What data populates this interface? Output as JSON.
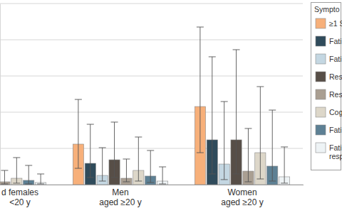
{
  "chart_data": {
    "type": "bar",
    "categories": [
      "d females\n<20 y",
      "Men\naged ≥20 y",
      "Women\naged ≥20 y"
    ],
    "legend_title": "Sympto",
    "series": [
      {
        "name": "≥1 S",
        "color": "#f7b07a",
        "values": [
          0.5,
          5.59,
          10.78
        ],
        "lower": [
          0.1,
          2.25,
          4.41
        ],
        "upper": [
          1.8,
          11.76,
          21.76
        ]
      },
      {
        "name": "Fati",
        "color": "#2f4b5b",
        "values": [
          0.3,
          2.94,
          6.18
        ],
        "lower": [
          0.05,
          0.98,
          1.47
        ],
        "upper": [
          1.2,
          8.33,
          17.65
        ]
      },
      {
        "name": "Fati",
        "color": "#c4d7e2",
        "values": [
          0.2,
          1.27,
          2.84
        ],
        "lower": [
          0.05,
          0.49,
          0.69
        ],
        "upper": [
          1.0,
          5.1,
          11.47
        ]
      },
      {
        "name": "Res",
        "color": "#574e47",
        "values": [
          0.3,
          3.43,
          6.18
        ],
        "lower": [
          0.05,
          0.98,
          1.47
        ],
        "upper": [
          1.2,
          8.63,
          18.63
        ]
      },
      {
        "name": "Res",
        "color": "#aa9f92",
        "values": [
          0.39,
          0.88,
          1.86
        ],
        "lower": [
          0.1,
          0.39,
          0.39
        ],
        "upper": [
          1.96,
          3.53,
          7.75
        ]
      },
      {
        "name": "Cog",
        "color": "#ddd7c9",
        "values": [
          0.88,
          1.96,
          4.41
        ],
        "lower": [
          0.2,
          0.49,
          0.78
        ],
        "upper": [
          3.73,
          6.57,
          13.53
        ]
      },
      {
        "name": "Fati",
        "color": "#5d8094",
        "values": [
          0.59,
          1.18,
          2.55
        ],
        "lower": [
          0.1,
          0.29,
          0.49
        ],
        "upper": [
          2.65,
          4.71,
          10.29
        ]
      },
      {
        "name": "Fati\nresp",
        "color": "#eef3f5",
        "values": [
          0.29,
          0.49,
          1.08
        ],
        "lower": [
          0.1,
          0.1,
          0.2
        ],
        "upper": [
          1.47,
          2.45,
          5.2
        ]
      }
    ],
    "ylim": [
      0,
      25
    ],
    "yticks": [
      0,
      5,
      10,
      15,
      20,
      25
    ],
    "grid": true,
    "tick_labels": false,
    "legend": "upper right"
  }
}
